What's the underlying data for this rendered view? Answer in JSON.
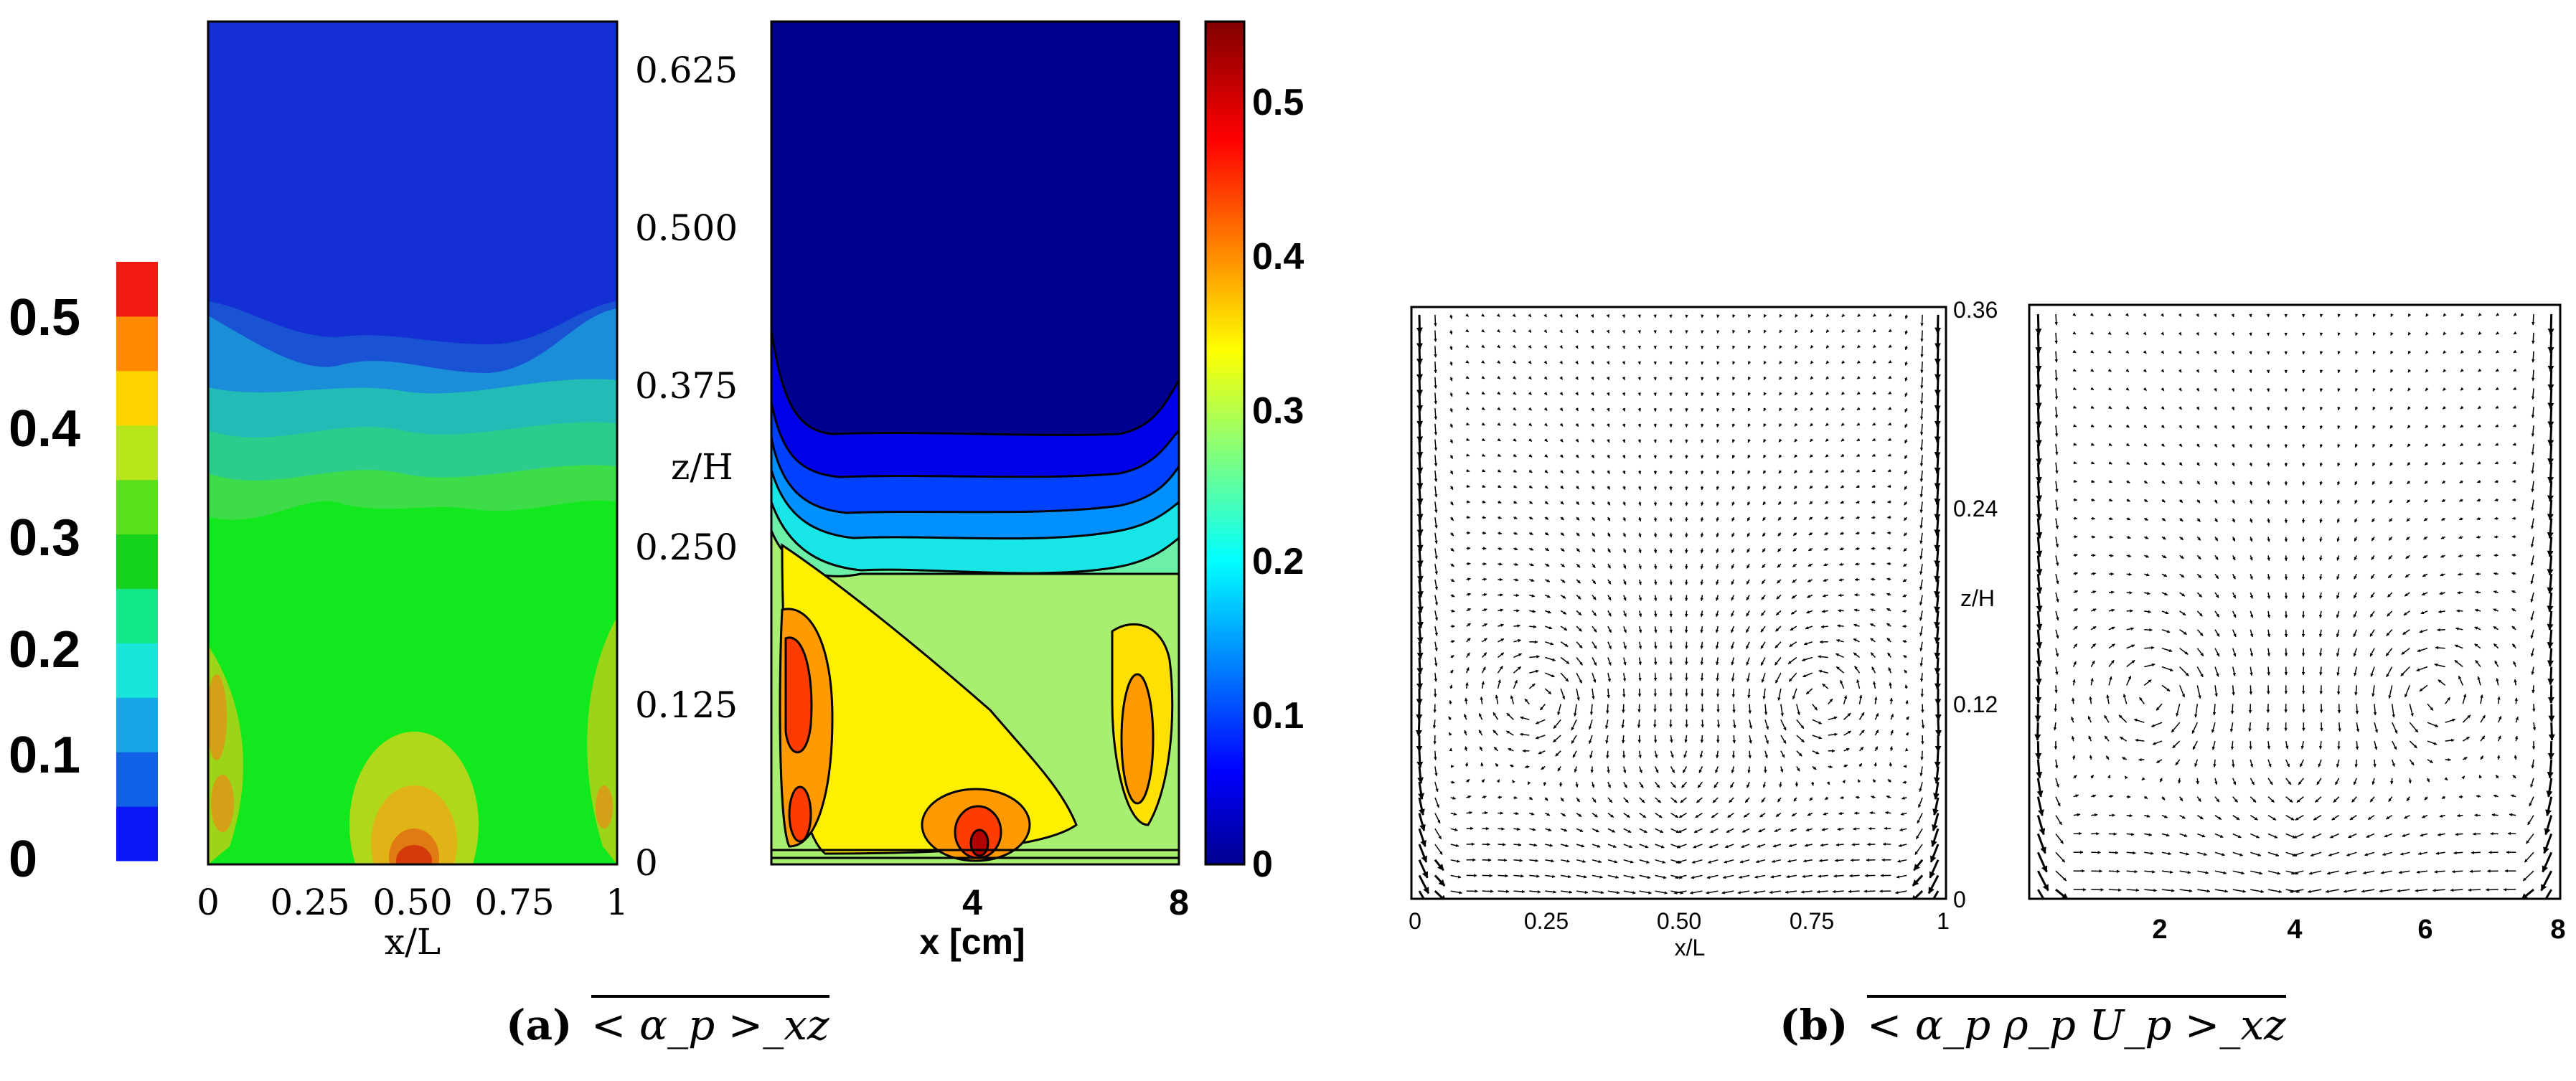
{
  "panel_a": {
    "left_plot": {
      "colorbar_ticks": [
        "0",
        "0.1",
        "0.2",
        "0.3",
        "0.4",
        "0.5"
      ],
      "y_ticks": [
        "0",
        "0.125",
        "0.250",
        "0.375",
        "0.500",
        "0.625"
      ],
      "y_label": "z/H",
      "x_ticks": [
        "0",
        "0.25",
        "0.50",
        "0.75",
        "1"
      ],
      "x_label": "x/L"
    },
    "right_plot": {
      "x_ticks": [
        "4",
        "8"
      ],
      "x_label": "x [cm]",
      "colorbar_ticks": [
        "0",
        "0.1",
        "0.2",
        "0.3",
        "0.4",
        "0.5"
      ]
    },
    "caption_label": "(a)",
    "caption_math": "< α_p >_xz"
  },
  "panel_b": {
    "left_plot": {
      "y_ticks": [
        "0",
        "0.12",
        "0.24",
        "0.36"
      ],
      "y_label": "z/H",
      "x_ticks": [
        "0",
        "0.25",
        "0.50",
        "0.75",
        "1"
      ],
      "x_label": "x/L"
    },
    "right_plot": {
      "x_ticks": [
        "2",
        "4",
        "6",
        "8"
      ]
    },
    "caption_label": "(b)",
    "caption_math": "< α_p ρ_p U_p >_xz"
  },
  "colors": {
    "jet": [
      "#00008f",
      "#0000ff",
      "#0080ff",
      "#00ffff",
      "#80ff80",
      "#ffff00",
      "#ff8000",
      "#ff0000",
      "#800000"
    ],
    "discrete_bar": [
      "#0b16f4",
      "#1160e8",
      "#16a6e6",
      "#18e6d8",
      "#10e88a",
      "#14d21a",
      "#5ae01a",
      "#b8e41a",
      "#ffd200",
      "#ff8a00",
      "#f21a10"
    ]
  }
}
